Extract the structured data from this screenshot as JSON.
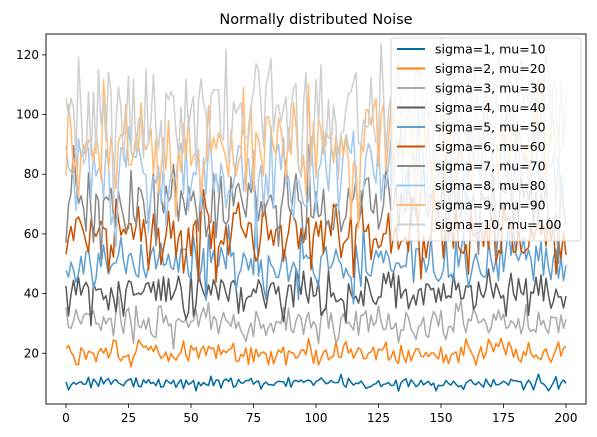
{
  "chart_data": {
    "type": "line",
    "title": "Normally distributed Noise",
    "xlabel": "",
    "ylabel": "",
    "xlim": [
      -8,
      208
    ],
    "ylim": [
      3,
      127
    ],
    "xticks": [
      0,
      25,
      50,
      75,
      100,
      125,
      150,
      175,
      200
    ],
    "yticks": [
      20,
      40,
      60,
      80,
      100,
      120
    ],
    "legend_position": "top-right",
    "grid": false,
    "x": {
      "start": 0,
      "stop": 200,
      "step": 1
    },
    "series": [
      {
        "name": "sigma=1, mu=10",
        "mu": 10,
        "sigma": 1,
        "color": "#006ba4"
      },
      {
        "name": "sigma=2, mu=20",
        "mu": 20,
        "sigma": 2,
        "color": "#ff800e"
      },
      {
        "name": "sigma=3, mu=30",
        "mu": 30,
        "sigma": 3,
        "color": "#ababab"
      },
      {
        "name": "sigma=4, mu=40",
        "mu": 40,
        "sigma": 4,
        "color": "#595959"
      },
      {
        "name": "sigma=5, mu=50",
        "mu": 50,
        "sigma": 5,
        "color": "#5f9ed1"
      },
      {
        "name": "sigma=6, mu=60",
        "mu": 60,
        "sigma": 6,
        "color": "#c85200"
      },
      {
        "name": "sigma=7, mu=70",
        "mu": 70,
        "sigma": 7,
        "color": "#898989"
      },
      {
        "name": "sigma=8, mu=80",
        "mu": 80,
        "sigma": 8,
        "color": "#a2c8ec"
      },
      {
        "name": "sigma=9, mu=90",
        "mu": 90,
        "sigma": 9,
        "color": "#ffbc79"
      },
      {
        "name": "sigma=10, mu=100",
        "mu": 100,
        "sigma": 10,
        "color": "#cfcfcf"
      }
    ]
  }
}
